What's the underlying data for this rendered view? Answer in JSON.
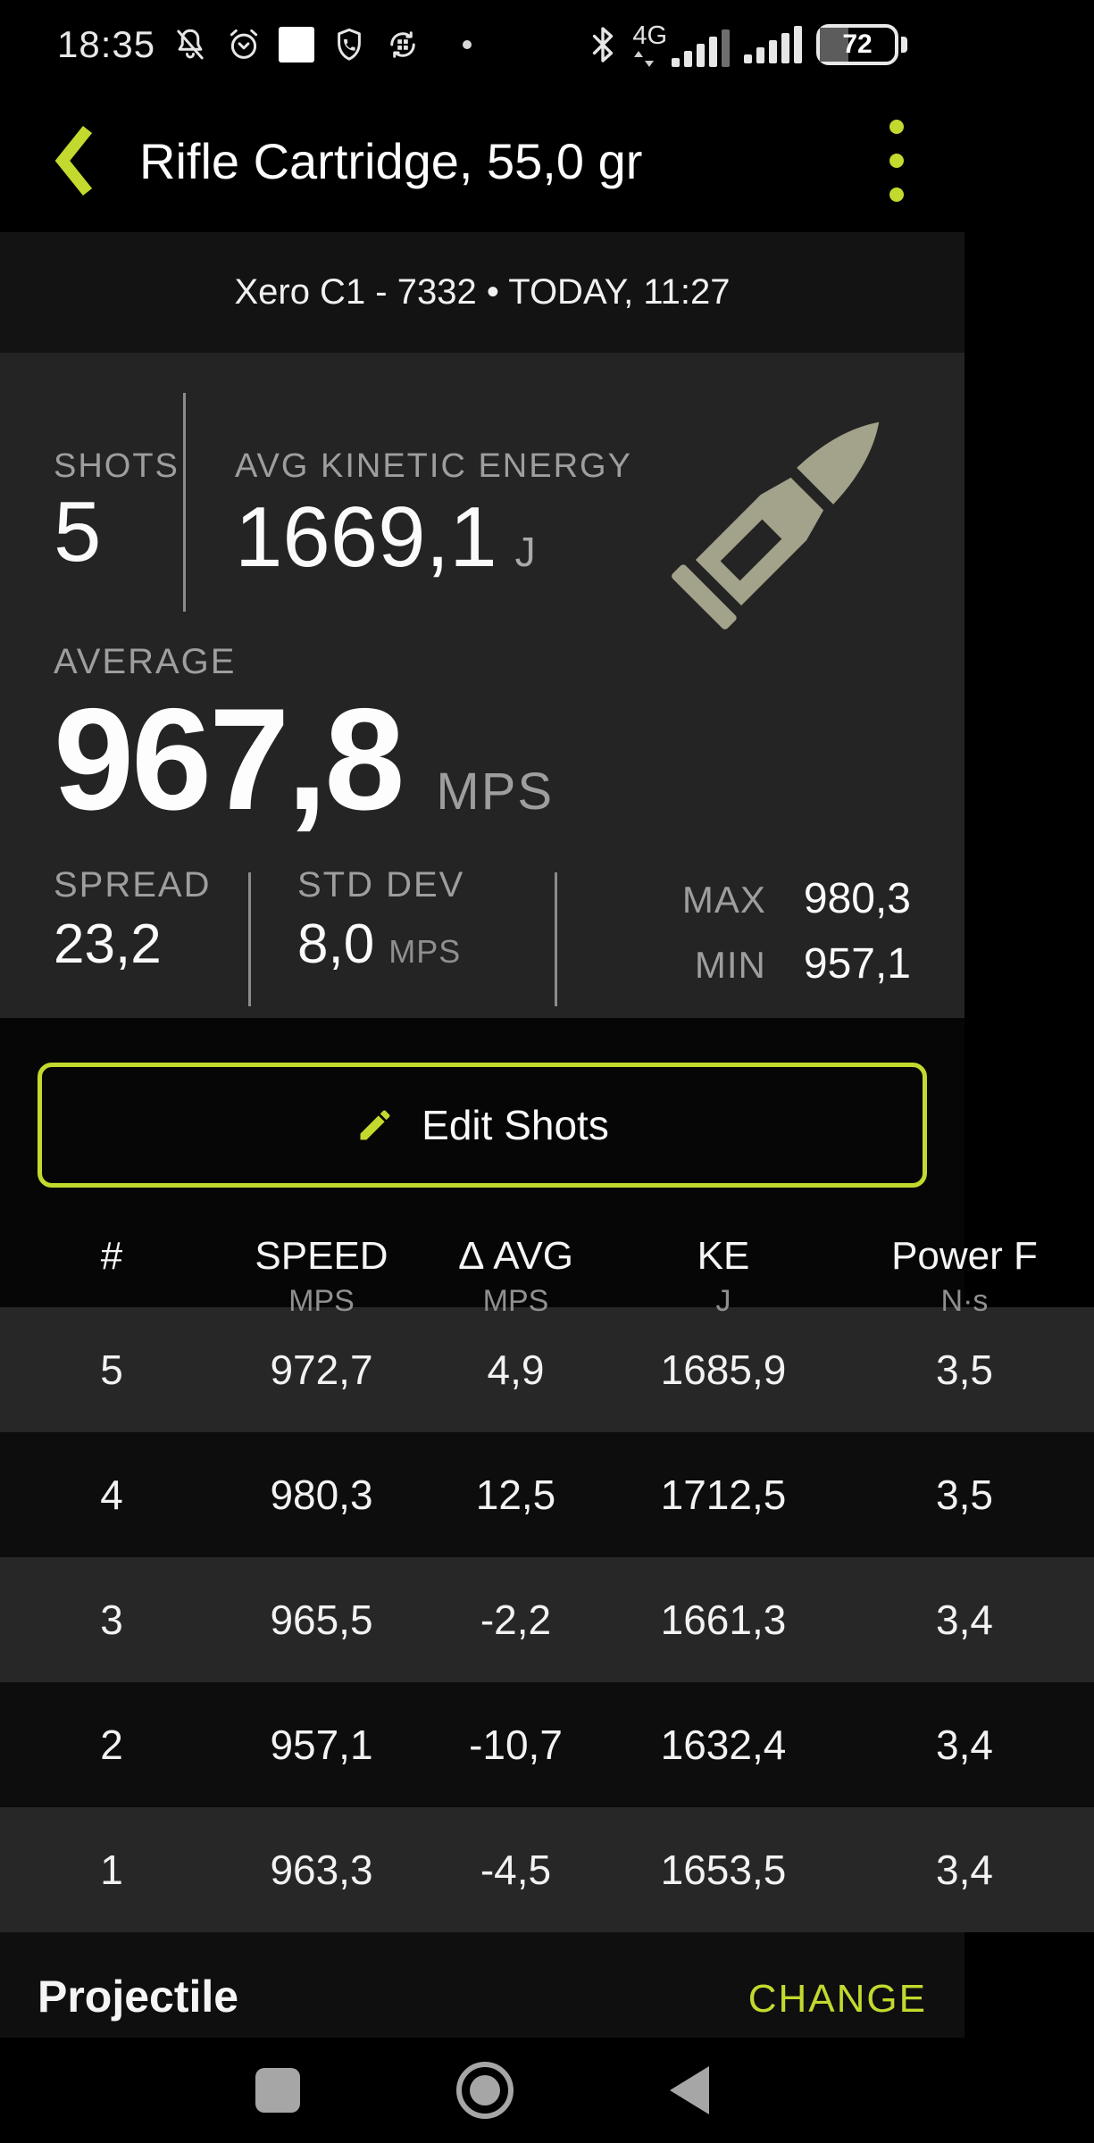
{
  "colors": {
    "accent": "#c3d92e",
    "bullet_icon": "#a3a28a"
  },
  "status_bar": {
    "time": "18:35",
    "network_type": "4G",
    "battery_percent": "72"
  },
  "header": {
    "title": "Rifle Cartridge, 55,0 gr"
  },
  "session_bar": {
    "text": "Xero C1 - 7332 • TODAY, 11:27"
  },
  "stats": {
    "shots_label": "SHOTS",
    "shots_value": "5",
    "avg_ke_label": "AVG KINETIC ENERGY",
    "avg_ke_value": "1669,1",
    "avg_ke_unit": "J",
    "average_label": "AVERAGE",
    "average_value": "967,8",
    "average_unit": "MPS",
    "spread_label": "SPREAD",
    "spread_value": "23,2",
    "std_dev_label": "STD DEV",
    "std_dev_value": "8,0",
    "std_dev_unit": "MPS",
    "max_label": "MAX",
    "max_value": "980,3",
    "min_label": "MIN",
    "min_value": "957,1"
  },
  "edit_button": {
    "label": "Edit Shots"
  },
  "table": {
    "columns": [
      {
        "label": "#",
        "unit": ""
      },
      {
        "label": "SPEED",
        "unit": "MPS"
      },
      {
        "label": "Δ AVG",
        "unit": "MPS"
      },
      {
        "label": "KE",
        "unit": "J"
      },
      {
        "label": "Power F",
        "unit": "N·s"
      }
    ],
    "rows": [
      [
        "5",
        "972,7",
        "4,9",
        "1685,9",
        "3,5"
      ],
      [
        "4",
        "980,3",
        "12,5",
        "1712,5",
        "3,5"
      ],
      [
        "3",
        "965,5",
        "-2,2",
        "1661,3",
        "3,4"
      ],
      [
        "2",
        "957,1",
        "-10,7",
        "1632,4",
        "3,4"
      ],
      [
        "1",
        "963,3",
        "-4,5",
        "1653,5",
        "3,4"
      ]
    ]
  },
  "footer": {
    "label": "Projectile",
    "action": "CHANGE"
  }
}
